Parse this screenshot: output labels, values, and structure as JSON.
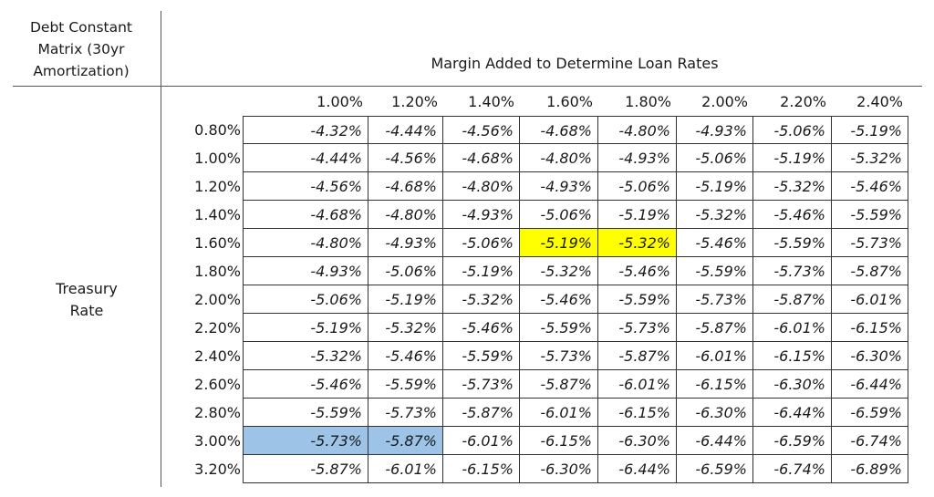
{
  "title_lines": [
    "Debt Constant",
    "Matrix (30yr",
    "Amortization)"
  ],
  "margin_header": "Margin Added to Determine Loan Rates",
  "treasury_label_lines": [
    "Treasury",
    "Rate"
  ],
  "columns": [
    "1.00%",
    "1.20%",
    "1.40%",
    "1.60%",
    "1.80%",
    "2.00%",
    "2.20%",
    "2.40%"
  ],
  "rows": [
    {
      "label": "0.80%",
      "values": [
        "-4.32%",
        "-4.44%",
        "-4.56%",
        "-4.68%",
        "-4.80%",
        "-4.93%",
        "-5.06%",
        "-5.19%"
      ]
    },
    {
      "label": "1.00%",
      "values": [
        "-4.44%",
        "-4.56%",
        "-4.68%",
        "-4.80%",
        "-4.93%",
        "-5.06%",
        "-5.19%",
        "-5.32%"
      ]
    },
    {
      "label": "1.20%",
      "values": [
        "-4.56%",
        "-4.68%",
        "-4.80%",
        "-4.93%",
        "-5.06%",
        "-5.19%",
        "-5.32%",
        "-5.46%"
      ]
    },
    {
      "label": "1.40%",
      "values": [
        "-4.68%",
        "-4.80%",
        "-4.93%",
        "-5.06%",
        "-5.19%",
        "-5.32%",
        "-5.46%",
        "-5.59%"
      ]
    },
    {
      "label": "1.60%",
      "values": [
        "-4.80%",
        "-4.93%",
        "-5.06%",
        "-5.19%",
        "-5.32%",
        "-5.46%",
        "-5.59%",
        "-5.73%"
      ]
    },
    {
      "label": "1.80%",
      "values": [
        "-4.93%",
        "-5.06%",
        "-5.19%",
        "-5.32%",
        "-5.46%",
        "-5.59%",
        "-5.73%",
        "-5.87%"
      ]
    },
    {
      "label": "2.00%",
      "values": [
        "-5.06%",
        "-5.19%",
        "-5.32%",
        "-5.46%",
        "-5.59%",
        "-5.73%",
        "-5.87%",
        "-6.01%"
      ]
    },
    {
      "label": "2.20%",
      "values": [
        "-5.19%",
        "-5.32%",
        "-5.46%",
        "-5.59%",
        "-5.73%",
        "-5.87%",
        "-6.01%",
        "-6.15%"
      ]
    },
    {
      "label": "2.40%",
      "values": [
        "-5.32%",
        "-5.46%",
        "-5.59%",
        "-5.73%",
        "-5.87%",
        "-6.01%",
        "-6.15%",
        "-6.30%"
      ]
    },
    {
      "label": "2.60%",
      "values": [
        "-5.46%",
        "-5.59%",
        "-5.73%",
        "-5.87%",
        "-6.01%",
        "-6.15%",
        "-6.30%",
        "-6.44%"
      ]
    },
    {
      "label": "2.80%",
      "values": [
        "-5.59%",
        "-5.73%",
        "-5.87%",
        "-6.01%",
        "-6.15%",
        "-6.30%",
        "-6.44%",
        "-6.59%"
      ]
    },
    {
      "label": "3.00%",
      "values": [
        "-5.73%",
        "-5.87%",
        "-6.01%",
        "-6.15%",
        "-6.30%",
        "-6.44%",
        "-6.59%",
        "-6.74%"
      ]
    },
    {
      "label": "3.20%",
      "values": [
        "-5.87%",
        "-6.01%",
        "-6.15%",
        "-6.30%",
        "-6.44%",
        "-6.59%",
        "-6.74%",
        "-6.89%"
      ]
    }
  ],
  "highlights": [
    {
      "row": 4,
      "col": 3,
      "color": "#ffff00"
    },
    {
      "row": 4,
      "col": 4,
      "color": "#ffff00"
    },
    {
      "row": 11,
      "col": 0,
      "color": "#9dc3e6"
    },
    {
      "row": 11,
      "col": 1,
      "color": "#9dc3e6"
    }
  ]
}
